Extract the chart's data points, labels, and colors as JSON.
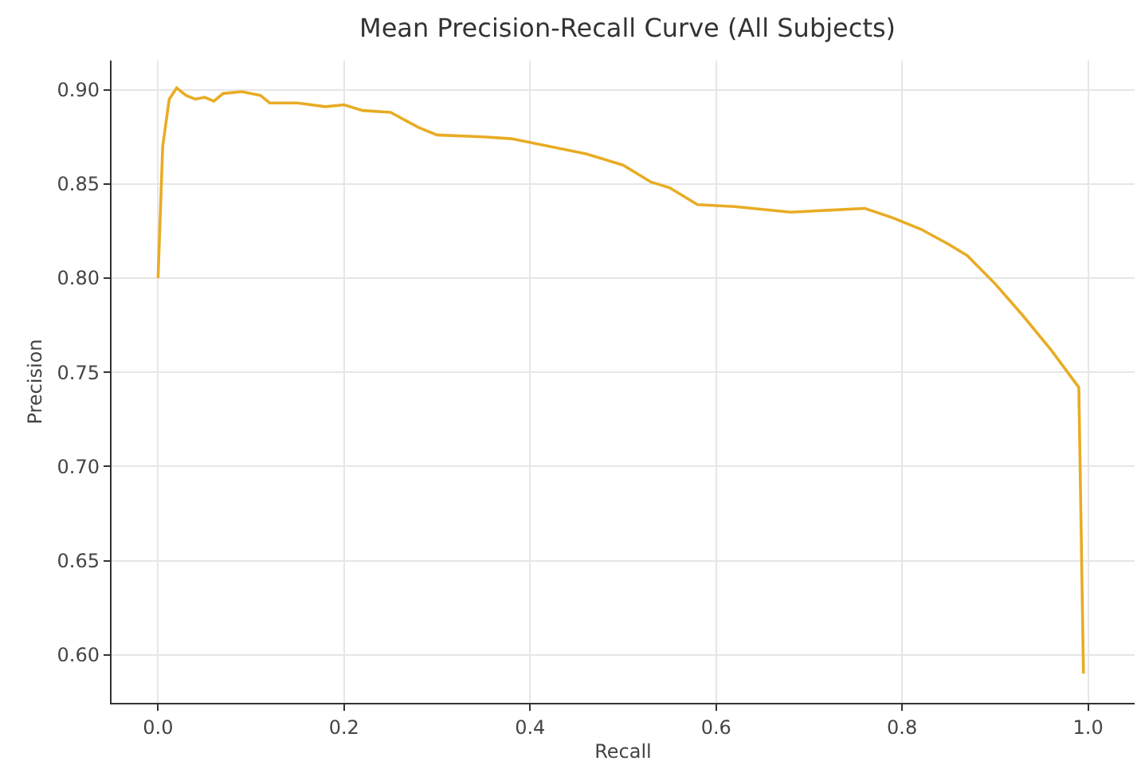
{
  "chart_data": {
    "type": "line",
    "title": "Mean Precision-Recall Curve (All Subjects)",
    "xlabel": "Recall",
    "ylabel": "Precision",
    "x": [
      0,
      0.005,
      0.012,
      0.02,
      0.03,
      0.04,
      0.05,
      0.06,
      0.07,
      0.09,
      0.11,
      0.12,
      0.15,
      0.18,
      0.2,
      0.22,
      0.25,
      0.28,
      0.3,
      0.35,
      0.38,
      0.42,
      0.46,
      0.5,
      0.53,
      0.55,
      0.58,
      0.62,
      0.68,
      0.72,
      0.76,
      0.79,
      0.82,
      0.85,
      0.87,
      0.9,
      0.93,
      0.96,
      0.99,
      0.995
    ],
    "series": [
      {
        "color": "#e8ac24",
        "values": [
          0.8,
          0.87,
          0.895,
          0.901,
          0.897,
          0.895,
          0.896,
          0.894,
          0.898,
          0.899,
          0.897,
          0.893,
          0.893,
          0.891,
          0.892,
          0.889,
          0.888,
          0.88,
          0.876,
          0.875,
          0.874,
          0.87,
          0.866,
          0.86,
          0.851,
          0.848,
          0.839,
          0.838,
          0.835,
          0.836,
          0.837,
          0.832,
          0.826,
          0.818,
          0.812,
          0.797,
          0.78,
          0.762,
          0.742,
          0.59
        ]
      }
    ],
    "xlim": [
      -0.05,
      1.05
    ],
    "ylim": [
      0.5745,
      0.9155
    ],
    "xticks": [
      {
        "value": 0,
        "label": "0.0"
      },
      0.2,
      0.4,
      0.6,
      0.8,
      {
        "value": 1,
        "label": "1.0"
      }
    ],
    "yticks": [
      {
        "value": 0.6,
        "label": "0.60"
      },
      0.65,
      {
        "value": 0.7,
        "label": "0.70"
      },
      0.75,
      {
        "value": 0.8,
        "label": "0.80"
      },
      0.85,
      {
        "value": 0.9,
        "label": "0.90"
      }
    ],
    "grid": true,
    "marker": "none",
    "line_style": "solid"
  }
}
